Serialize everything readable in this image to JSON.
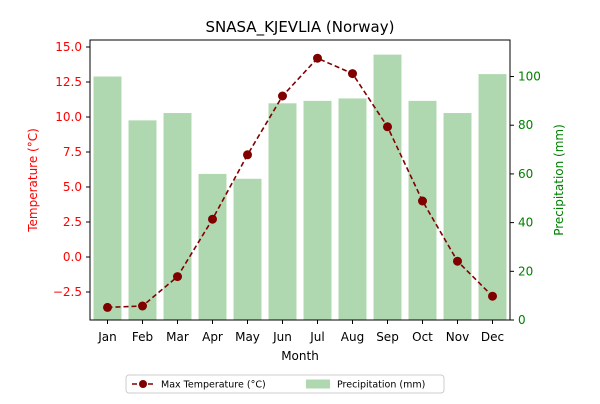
{
  "chart_data": {
    "type": "bar+line",
    "title": "SNASA_KJEVLIA (Norway)",
    "xlabel": "Month",
    "categories": [
      "Jan",
      "Feb",
      "Mar",
      "Apr",
      "May",
      "Jun",
      "Jul",
      "Aug",
      "Sep",
      "Oct",
      "Nov",
      "Dec"
    ],
    "y_left": {
      "label": "Temperature (°C)",
      "range": [
        -4.5,
        15.5
      ],
      "ticks": [
        -2.5,
        0.0,
        2.5,
        5.0,
        7.5,
        10.0,
        12.5,
        15.0
      ],
      "tick_labels": [
        "−2.5",
        "0.0",
        "2.5",
        "5.0",
        "7.5",
        "10.0",
        "12.5",
        "15.0"
      ],
      "color": "#ff0000"
    },
    "y_right": {
      "label": "Precipitation (mm)",
      "range": [
        0,
        115
      ],
      "ticks": [
        0,
        20,
        40,
        60,
        80,
        100
      ],
      "tick_labels": [
        "0",
        "20",
        "40",
        "60",
        "80",
        "100"
      ],
      "color": "#008000"
    },
    "series": [
      {
        "name": "Max Temperature (°C)",
        "kind": "line",
        "axis": "left",
        "color": "#800000",
        "values": [
          -3.6,
          -3.5,
          -1.4,
          2.7,
          7.3,
          11.5,
          14.2,
          13.1,
          9.3,
          4.0,
          -0.3,
          -2.8
        ]
      },
      {
        "name": "Precipitation (mm)",
        "kind": "bar",
        "axis": "right",
        "color": "#b0d8b0",
        "values": [
          100,
          82,
          85,
          60,
          58,
          89,
          90,
          91,
          109,
          90,
          85,
          101
        ]
      }
    ],
    "legend_position": "bottom-center",
    "grid": false
  }
}
